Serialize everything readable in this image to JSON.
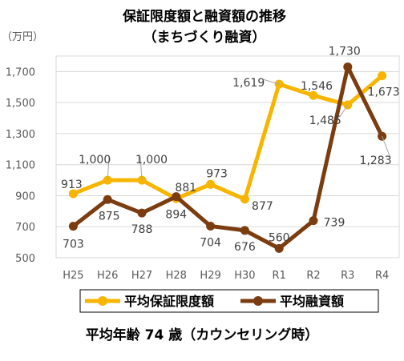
{
  "chart_data": {
    "type": "line",
    "title": "保証限度額と融資額の推移",
    "subtitle": "（まちづくり融資）",
    "unit_label": "（万円）",
    "categories": [
      "H25",
      "H26",
      "H27",
      "H28",
      "H29",
      "H30",
      "R1",
      "R2",
      "R3",
      "R4"
    ],
    "y_ticks": [
      "500",
      "700",
      "900",
      "1,100",
      "1,300",
      "1,500",
      "1,700"
    ],
    "ylim": [
      500,
      1800
    ],
    "grid": true,
    "legend_position": "bottom",
    "series": [
      {
        "name": "平均保証限度額",
        "color": "#F7B500",
        "values": [
          913,
          1000,
          1000,
          881,
          973,
          877,
          1619,
          1546,
          1485,
          1673
        ],
        "labels": [
          "913",
          "1,000",
          "1,000",
          "881",
          "973",
          "877",
          "1,619",
          "1,546",
          "1,485",
          "1,673"
        ]
      },
      {
        "name": "平均融資額",
        "color": "#7B3C10",
        "values": [
          703,
          875,
          788,
          894,
          704,
          676,
          560,
          739,
          1730,
          1283
        ],
        "labels": [
          "703",
          "875",
          "788",
          "894",
          "704",
          "676",
          "560",
          "739",
          "1,730",
          "1,283"
        ]
      }
    ]
  },
  "caption": "平均年齢 74 歳（カウンセリング時）"
}
